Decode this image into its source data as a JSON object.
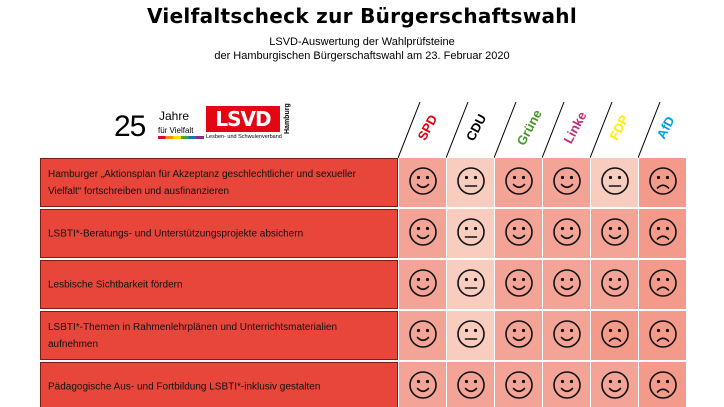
{
  "header": {
    "title": "Vielfaltscheck zur Bürgerschaftswahl",
    "subtitle_line1": "LSVD-Auswertung der Wahlprüfsteine",
    "subtitle_line2": "der Hamburgischen Bürgerschaftswahl am 23. Februar 2020"
  },
  "logo": {
    "number": "25",
    "jahre": "Jahre",
    "vielfalt": "für Vielfalt",
    "lsvd": "LSVD",
    "lsvd_sub": "Lesben- und Schwulenverband",
    "region": "Hamburg"
  },
  "parties": [
    {
      "name": "SPD",
      "color": "#e3000f"
    },
    {
      "name": "CDU",
      "color": "#000000"
    },
    {
      "name": "Grüne",
      "color": "#46962b"
    },
    {
      "name": "Linke",
      "color": "#be3075"
    },
    {
      "name": "FDP",
      "color": "#ffed00"
    },
    {
      "name": "AfD",
      "color": "#009ee0"
    }
  ],
  "colors": {
    "question_bg": "#e8463b",
    "happy_bg": "#f4a497",
    "neutral_bg": "#f8cdbf",
    "sad_bg": "#f39a8b"
  },
  "rows": [
    {
      "question": "Hamburger „Aktionsplan für Akzeptanz geschlechtlicher und sexueller Vielfalt“ fortschreiben und ausfinanzieren",
      "ratings": [
        "happy",
        "neutral",
        "happy",
        "happy",
        "neutral",
        "sad"
      ]
    },
    {
      "question": "LSBTI*-Beratungs- und Unterstützungsprojekte absichern",
      "ratings": [
        "happy",
        "neutral",
        "happy",
        "happy",
        "happy",
        "sad"
      ]
    },
    {
      "question": "Lesbische Sichtbarkeit fördern",
      "ratings": [
        "happy",
        "neutral",
        "happy",
        "happy",
        "happy",
        "sad"
      ]
    },
    {
      "question": "LSBTI*-Themen in Rahmenlehrplänen und Unterrichtsmaterialien aufnehmen",
      "ratings": [
        "happy",
        "neutral",
        "happy",
        "happy",
        "sad",
        "sad"
      ]
    },
    {
      "question": "Pädagogische Aus- und Fortbildung LSBTI*-inklusiv gestalten",
      "ratings": [
        "happy",
        "happy",
        "happy",
        "happy",
        "happy",
        "sad"
      ]
    }
  ]
}
